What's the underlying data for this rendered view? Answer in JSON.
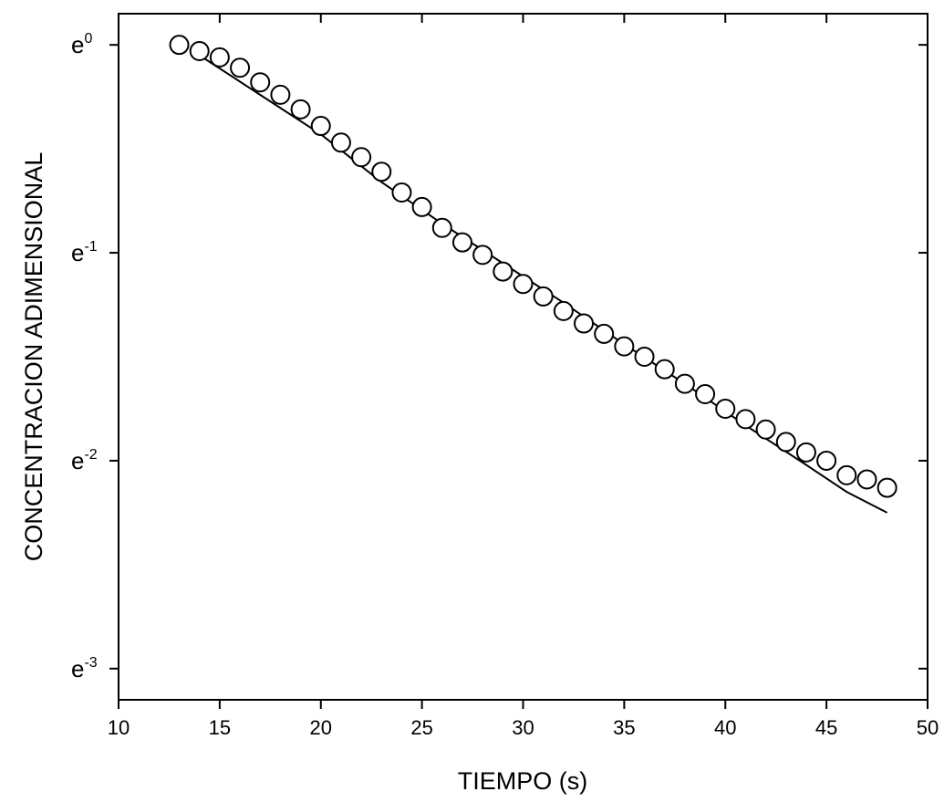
{
  "chart_data": {
    "type": "scatter",
    "xlabel": "TIEMPO (s)",
    "ylabel": "CONCENTRACION ADIMENSIONAL",
    "yscale": "log-e",
    "xlim": [
      10,
      50
    ],
    "ylim_exponent": [
      -3.15,
      0.15
    ],
    "x_ticks": [
      10,
      15,
      20,
      25,
      30,
      35,
      40,
      45,
      50
    ],
    "y_ticks": [
      {
        "base": "e",
        "exp": "0",
        "value": 0
      },
      {
        "base": "e",
        "exp": "-1",
        "value": -1
      },
      {
        "base": "e",
        "exp": "-2",
        "value": -2
      },
      {
        "base": "e",
        "exp": "-3",
        "value": -3
      }
    ],
    "grid": false,
    "series": [
      {
        "type": "scatter",
        "marker": "open-circle",
        "points": [
          {
            "x": 13,
            "y_exp": 0.0
          },
          {
            "x": 14,
            "y_exp": -0.03
          },
          {
            "x": 15,
            "y_exp": -0.06
          },
          {
            "x": 16,
            "y_exp": -0.11
          },
          {
            "x": 17,
            "y_exp": -0.18
          },
          {
            "x": 18,
            "y_exp": -0.24
          },
          {
            "x": 19,
            "y_exp": -0.31
          },
          {
            "x": 20,
            "y_exp": -0.39
          },
          {
            "x": 21,
            "y_exp": -0.47
          },
          {
            "x": 22,
            "y_exp": -0.54
          },
          {
            "x": 23,
            "y_exp": -0.61
          },
          {
            "x": 24,
            "y_exp": -0.71
          },
          {
            "x": 25,
            "y_exp": -0.78
          },
          {
            "x": 26,
            "y_exp": -0.88
          },
          {
            "x": 27,
            "y_exp": -0.95
          },
          {
            "x": 28,
            "y_exp": -1.01
          },
          {
            "x": 29,
            "y_exp": -1.09
          },
          {
            "x": 30,
            "y_exp": -1.15
          },
          {
            "x": 31,
            "y_exp": -1.21
          },
          {
            "x": 32,
            "y_exp": -1.28
          },
          {
            "x": 33,
            "y_exp": -1.34
          },
          {
            "x": 34,
            "y_exp": -1.39
          },
          {
            "x": 35,
            "y_exp": -1.45
          },
          {
            "x": 36,
            "y_exp": -1.5
          },
          {
            "x": 37,
            "y_exp": -1.56
          },
          {
            "x": 38,
            "y_exp": -1.63
          },
          {
            "x": 39,
            "y_exp": -1.68
          },
          {
            "x": 40,
            "y_exp": -1.75
          },
          {
            "x": 41,
            "y_exp": -1.8
          },
          {
            "x": 42,
            "y_exp": -1.85
          },
          {
            "x": 43,
            "y_exp": -1.91
          },
          {
            "x": 44,
            "y_exp": -1.96
          },
          {
            "x": 45,
            "y_exp": -2.0
          },
          {
            "x": 46,
            "y_exp": -2.07
          },
          {
            "x": 47,
            "y_exp": -2.09
          },
          {
            "x": 48,
            "y_exp": -2.13
          }
        ]
      },
      {
        "type": "line",
        "marker": "none",
        "points": [
          {
            "x": 14,
            "y_exp": -0.05
          },
          {
            "x": 17,
            "y_exp": -0.24
          },
          {
            "x": 20,
            "y_exp": -0.43
          },
          {
            "x": 23,
            "y_exp": -0.66
          },
          {
            "x": 26,
            "y_exp": -0.86
          },
          {
            "x": 29,
            "y_exp": -1.05
          },
          {
            "x": 32,
            "y_exp": -1.24
          },
          {
            "x": 35,
            "y_exp": -1.44
          },
          {
            "x": 38,
            "y_exp": -1.63
          },
          {
            "x": 41,
            "y_exp": -1.83
          },
          {
            "x": 44,
            "y_exp": -2.02
          },
          {
            "x": 46,
            "y_exp": -2.15
          },
          {
            "x": 48,
            "y_exp": -2.25
          }
        ]
      }
    ]
  }
}
